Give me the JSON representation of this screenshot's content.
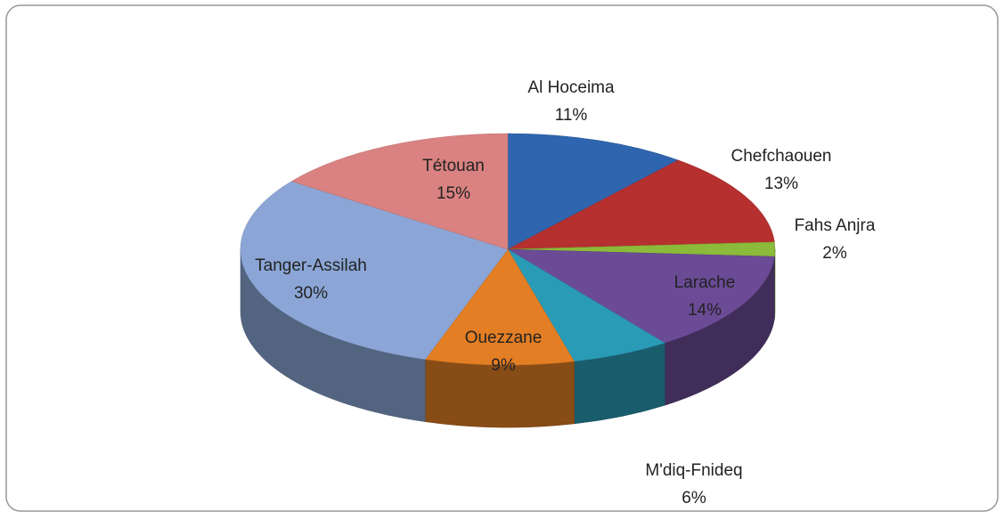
{
  "chart_data": {
    "type": "pie3d",
    "categories": [
      "Al Hoceima",
      "Chefchaouen",
      "Fahs Anjra",
      "Larache",
      "M'diq-Fnideq",
      "Ouezzane",
      "Tanger-Assilah",
      "Tétouan"
    ],
    "values": [
      11,
      13,
      2,
      14,
      6,
      9,
      30,
      15
    ],
    "value_labels": [
      "11%",
      "13%",
      "2%",
      "14%",
      "6%",
      "9%",
      "30%",
      "15%"
    ],
    "colors": [
      "#2f65ae",
      "#b5302f",
      "#8cba3a",
      "#6b4b96",
      "#2a9bb6",
      "#e37e24",
      "#8ba6d6",
      "#d98281"
    ]
  }
}
